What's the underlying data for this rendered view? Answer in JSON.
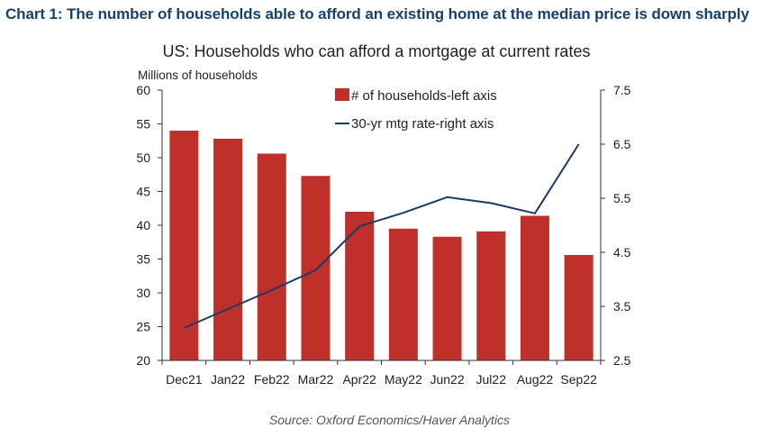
{
  "heading": "Chart 1: The number of households able to afford an existing home at the median price is down sharply",
  "source": "Source: Oxford Economics/Haver Analytics",
  "colors": {
    "heading": "#17416e",
    "bars": "#c0302a",
    "line": "#1c3a66"
  },
  "chart_data": {
    "type": "bar",
    "title": "US: Households who can afford a mortgage at current rates",
    "ylabel": "Millions of households",
    "categories": [
      "Dec21",
      "Jan22",
      "Feb22",
      "Mar22",
      "Apr22",
      "May22",
      "Jun22",
      "Jul22",
      "Aug22",
      "Sep22"
    ],
    "series": [
      {
        "name": "# of households-left axis",
        "type": "bar",
        "axis": "left",
        "values": [
          54.0,
          52.8,
          50.6,
          47.3,
          42.0,
          39.5,
          38.3,
          39.1,
          41.4,
          35.6
        ]
      },
      {
        "name": "30-yr mtg rate-right axis",
        "type": "line",
        "axis": "right",
        "values": [
          3.1,
          3.45,
          3.8,
          4.17,
          4.98,
          5.23,
          5.52,
          5.41,
          5.22,
          6.5
        ]
      }
    ],
    "ylim": [
      20,
      60
    ],
    "yticks": [
      "60",
      "55",
      "50",
      "45",
      "40",
      "35",
      "30",
      "25",
      "20"
    ],
    "y2lim": [
      2.5,
      7.5
    ],
    "y2ticks": [
      "7.5",
      "6.5",
      "5.5",
      "4.5",
      "3.5",
      "2.5"
    ],
    "legend": "top-center",
    "grid": false
  }
}
